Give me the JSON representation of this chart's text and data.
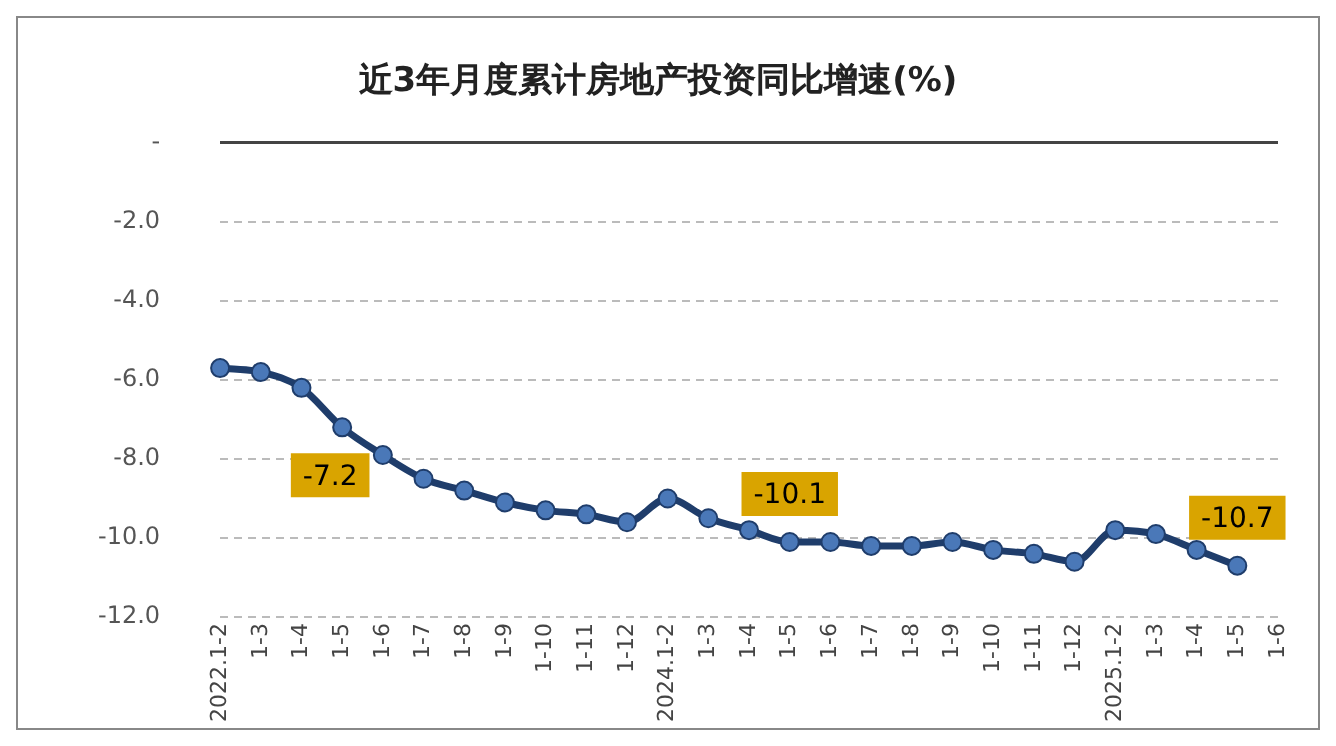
{
  "chart_data": {
    "type": "line",
    "title": "近3年月度累计房地产投资同比增速(%)",
    "categories": [
      "2022.1-2",
      "1-3",
      "1-4",
      "1-5",
      "1-6",
      "1-7",
      "1-8",
      "1-9",
      "1-10",
      "1-11",
      "1-12",
      "2024.1-2",
      "1-3",
      "1-4",
      "1-5",
      "1-6",
      "1-7",
      "1-8",
      "1-9",
      "1-10",
      "1-11",
      "1-12",
      "2025.1-2",
      "1-3",
      "1-4",
      "1-5",
      "1-6"
    ],
    "series": [
      {
        "color": "#1f3d6b",
        "values": [
          -5.7,
          -5.8,
          -6.2,
          -7.2,
          -7.9,
          -8.5,
          -8.8,
          -9.1,
          -9.3,
          -9.4,
          -9.6,
          -9.0,
          -9.5,
          -9.8,
          -10.1,
          -10.1,
          -10.2,
          -10.2,
          -10.1,
          -10.3,
          -10.4,
          -10.6,
          -9.8,
          -9.9,
          -10.3,
          -10.7,
          null
        ],
        "value_labels": [
          null,
          null,
          null,
          "-7.2",
          null,
          null,
          null,
          null,
          null,
          null,
          null,
          null,
          null,
          null,
          "-10.1",
          null,
          null,
          null,
          null,
          null,
          null,
          null,
          null,
          null,
          null,
          "-10.7",
          null
        ]
      }
    ],
    "ylim": [
      -12,
      0
    ],
    "yticks": [
      {
        "value": 0,
        "label": "-"
      },
      {
        "value": -2,
        "label": "-2.0"
      },
      {
        "value": -4,
        "label": "-4.0"
      },
      {
        "value": -6,
        "label": "-6.0"
      },
      {
        "value": -8,
        "label": "-8.0"
      },
      {
        "value": -10,
        "label": "-10.0"
      },
      {
        "value": -12,
        "label": "-12.0"
      }
    ],
    "grid": "y",
    "marker": "circle",
    "line_style": "solid",
    "legend": false
  }
}
